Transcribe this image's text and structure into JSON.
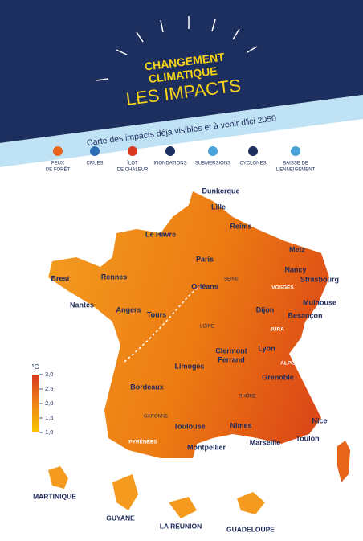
{
  "header": {
    "title": [
      "CHANGEMENT",
      "CLIMATIQUE"
    ],
    "subtitle_big": "LES IMPACTS",
    "subtitle": "Carte des impacts déjà visibles et à venir d'ici 2050"
  },
  "legend": {
    "items": [
      {
        "lines": [
          "FEUX",
          "DE FORÊT"
        ]
      },
      {
        "lines": [
          "CRUES"
        ]
      },
      {
        "lines": [
          "ÎLOT",
          "DE CHALEUR"
        ]
      },
      {
        "lines": [
          "INONDATIONS"
        ]
      },
      {
        "lines": [
          "SUBMERSIONS"
        ]
      },
      {
        "lines": [
          "CYCLONES"
        ]
      },
      {
        "lines": [
          "BAISSE DE",
          "L'ENNEIGEMENT"
        ]
      }
    ]
  },
  "scale": {
    "unit": "°C",
    "ticks": [
      {
        "value": 3,
        "label": "3,0"
      },
      {
        "value": 2.5,
        "label": "2,5"
      },
      {
        "value": 2,
        "label": "2,0"
      },
      {
        "value": 1.5,
        "label": "1,5"
      },
      {
        "value": 1,
        "label": "1,0"
      }
    ]
  },
  "cities": [
    "Dunkerque",
    "Lille",
    "Le Havre",
    "Reims",
    "Metz",
    "Paris",
    "Nancy",
    "Strasbourg",
    "Brest",
    "Rennes",
    "Orléans",
    "Mulhouse",
    "Nantes",
    "Angers",
    "Tours",
    "Dijon",
    "Besançon",
    "Clermont",
    "Ferrand",
    "Lyon",
    "Limoges",
    "Grenoble",
    "Bordeaux",
    "Toulouse",
    "Nîmes",
    "Nice",
    "Montpellier",
    "Marseille",
    "Toulon"
  ],
  "mountains": [
    "VOSGES",
    "JURA",
    "ALPES",
    "PYRÉNÉES"
  ],
  "rivers": [
    "SEINE",
    "LOIRE",
    "RHÔNE",
    "GARONNE"
  ],
  "overseas": [
    "MARTINIQUE",
    "GUYANE",
    "LA RÉUNION",
    "GUADELOUPE"
  ]
}
